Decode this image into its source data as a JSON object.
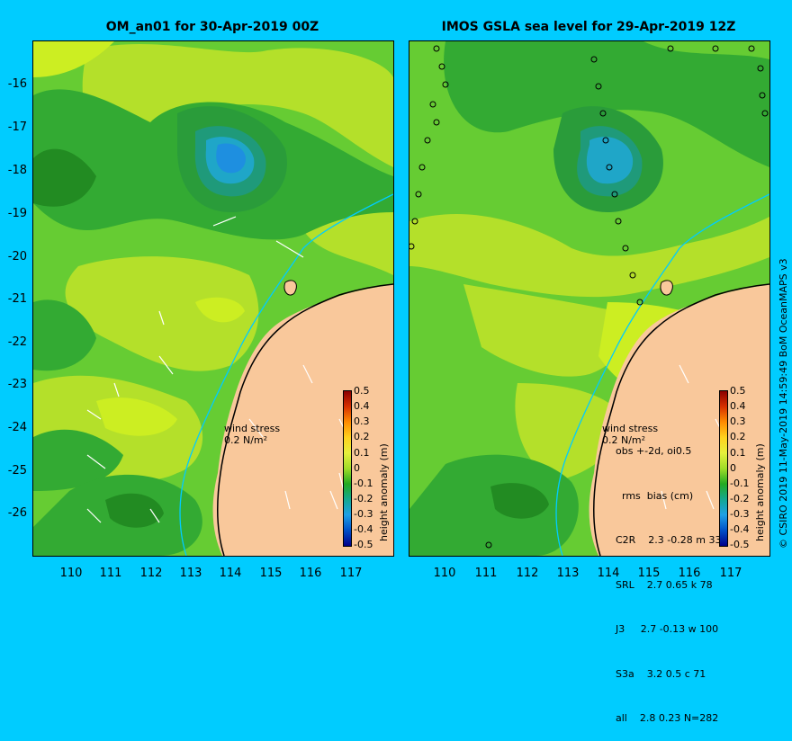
{
  "left_panel": {
    "title": "OM_an01 for 30-Apr-2019 00Z",
    "wind_label_line1": "wind stress",
    "wind_label_line2": "0.2 N/m²"
  },
  "right_panel": {
    "title": "IMOS GSLA sea level  for 29-Apr-2019 12Z",
    "wind_label_line1": "wind stress",
    "wind_label_line2": "0.2 N/m²",
    "stats_lines": [
      "obs +-2d, oi0.5",
      "  rms  bias (cm)",
      "C2R    2.3 -0.28 m 33",
      "SRL    2.7 0.65 k 78",
      "J3     2.7 -0.13 w 100",
      "S3a    3.2 0.5 c 71",
      "all    2.8 0.23 N=282"
    ]
  },
  "y_ticks": [
    "-16",
    "-17",
    "-18",
    "-19",
    "-20",
    "-21",
    "-22",
    "-23",
    "-24",
    "-25",
    "-26"
  ],
  "x_ticks": [
    "110",
    "111",
    "112",
    "113",
    "114",
    "115",
    "116",
    "117"
  ],
  "colorbar": {
    "title": "height anomaly (m)",
    "ticks": [
      "0.5",
      "0.4",
      "0.3",
      "0.2",
      "0.1",
      "0",
      "-0.1",
      "-0.2",
      "-0.3",
      "-0.4",
      "-0.5"
    ]
  },
  "credit": "© CSIRO 2019   11-May-2019 14:59:49 BoM OceanMAPS v3",
  "colors": {
    "background": "#00ccff",
    "land": "#f9c89b",
    "ssh_low": "#22aa22",
    "ssh_mid": "#66cc33",
    "ssh_high": "#ccee22"
  }
}
